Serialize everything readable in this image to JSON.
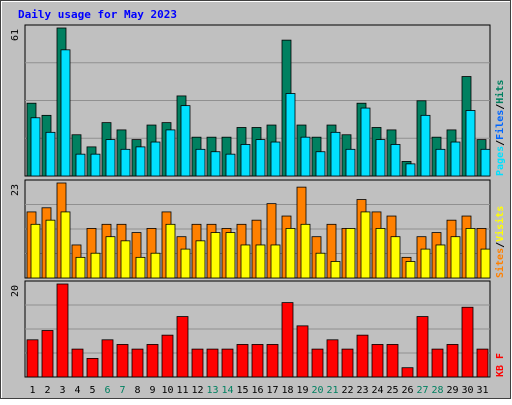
{
  "chart_data": {
    "type": "bar",
    "title": "Daily usage for May 2023",
    "categories": [
      "1",
      "2",
      "3",
      "4",
      "5",
      "6",
      "7",
      "8",
      "9",
      "10",
      "11",
      "12",
      "13",
      "14",
      "15",
      "16",
      "17",
      "18",
      "19",
      "20",
      "21",
      "22",
      "23",
      "24",
      "25",
      "26",
      "27",
      "28",
      "29",
      "30",
      "31"
    ],
    "weekend_days": [
      "6",
      "7",
      "13",
      "14",
      "20",
      "21",
      "27",
      "28"
    ],
    "panels": [
      {
        "id": "hits",
        "ymax_label": "61",
        "ylim": [
          0,
          61
        ],
        "legend": [
          {
            "text": "Pages",
            "color": "#00e0ff"
          },
          {
            "text": "/",
            "color": "#000000"
          },
          {
            "text": "Files",
            "color": "#0066ff"
          },
          {
            "text": "/",
            "color": "#000000"
          },
          {
            "text": "Hits",
            "color": "#008060"
          }
        ],
        "series": [
          {
            "name": "Hits",
            "color": "#008060",
            "values": [
              30,
              25,
              61,
              17,
              12,
              22,
              19,
              15,
              21,
              22,
              33,
              16,
              16,
              16,
              20,
              20,
              21,
              56,
              21,
              16,
              21,
              17,
              30,
              20,
              19,
              6,
              31,
              16,
              19,
              41,
              15
            ]
          },
          {
            "name": "Files",
            "color": "#00e0ff",
            "values": [
              24,
              18,
              52,
              9,
              9,
              15,
              11,
              12,
              14,
              19,
              29,
              11,
              10,
              9,
              13,
              15,
              14,
              34,
              16,
              10,
              18,
              11,
              28,
              15,
              13,
              5,
              25,
              11,
              14,
              27,
              11
            ]
          }
        ]
      },
      {
        "id": "visits",
        "ymax_label": "23",
        "ylim": [
          0,
          23
        ],
        "legend": [
          {
            "text": "Sites",
            "color": "#ff8000"
          },
          {
            "text": "/",
            "color": "#000000"
          },
          {
            "text": "Visits",
            "color": "#ffff00"
          }
        ],
        "series": [
          {
            "name": "Visits",
            "color": "#ff8000",
            "values": [
              16,
              17,
              23,
              8,
              12,
              13,
              13,
              11,
              12,
              16,
              10,
              13,
              13,
              12,
              13,
              14,
              18,
              15,
              22,
              10,
              13,
              12,
              19,
              16,
              15,
              5,
              10,
              11,
              14,
              15,
              12
            ]
          },
          {
            "name": "Sites",
            "color": "#ffff00",
            "values": [
              13,
              14,
              16,
              5,
              6,
              10,
              9,
              5,
              6,
              13,
              7,
              9,
              11,
              11,
              8,
              8,
              8,
              12,
              13,
              6,
              4,
              12,
              16,
              12,
              10,
              4,
              7,
              8,
              10,
              12,
              7
            ]
          }
        ]
      },
      {
        "id": "kbf",
        "ymax_label": "20",
        "ylim": [
          0,
          20
        ],
        "legend": [
          {
            "text": "KB F",
            "color": "#ff0000"
          }
        ],
        "series": [
          {
            "name": "KB F",
            "color": "#ff0000",
            "values": [
              8,
              10,
              20,
              6,
              4,
              8,
              7,
              6,
              7,
              9,
              13,
              6,
              6,
              6,
              7,
              7,
              7,
              16,
              11,
              6,
              8,
              6,
              9,
              7,
              7,
              2,
              13,
              6,
              7,
              15,
              6
            ]
          }
        ]
      }
    ],
    "colors": {
      "background": "#c0c0c0",
      "grid": "#909090",
      "title": "#0000ff",
      "axis_text": "#000000",
      "weekend_text": "#008060"
    },
    "grid": true
  }
}
